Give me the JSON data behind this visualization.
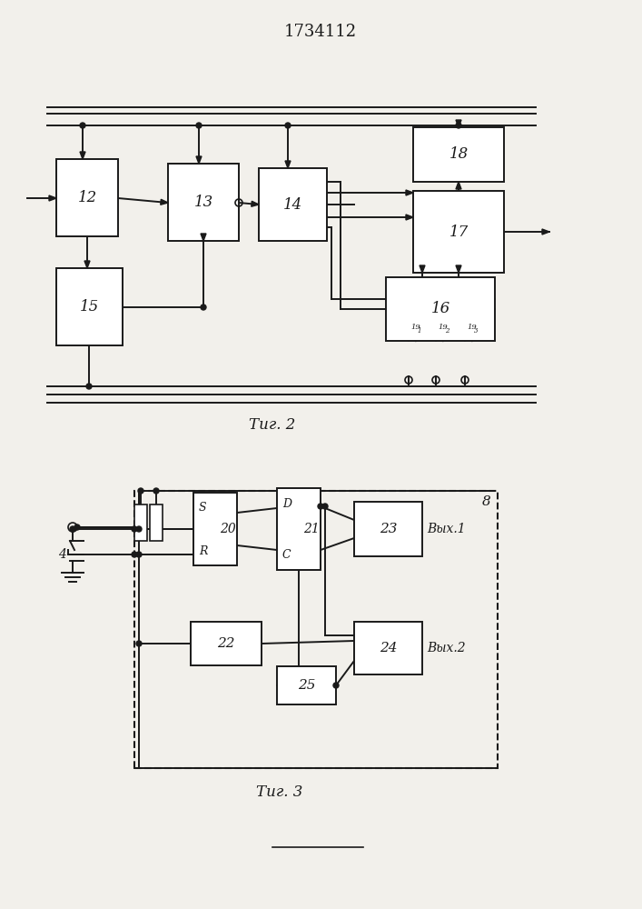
{
  "title": "1734112",
  "fig2_label": "Τиг. 2",
  "fig3_label": "Τиг. 3",
  "bg_color": "#f2f0eb",
  "line_color": "#1a1a1a",
  "font_size_title": 13,
  "font_size_label": 11,
  "font_size_box": 12
}
